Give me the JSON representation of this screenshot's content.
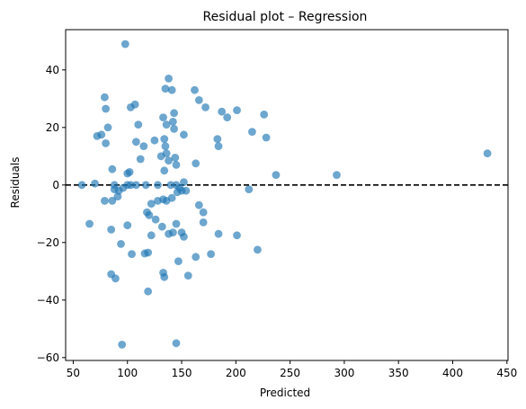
{
  "chart_data": {
    "type": "scatter",
    "title": "Residual plot – Regression",
    "xlabel": "Predicted",
    "ylabel": "Residuals",
    "xlim": [
      43,
      451
    ],
    "ylim": [
      -61,
      54
    ],
    "xticks": [
      50,
      100,
      150,
      200,
      250,
      300,
      350,
      400,
      450
    ],
    "yticks": [
      -60,
      -40,
      -20,
      0,
      20,
      40
    ],
    "grid": false,
    "reference_line": {
      "y": 0,
      "style": "dashed",
      "color": "#000000"
    },
    "point_color": "#1f77b4",
    "point_opacity": 0.65,
    "points": [
      [
        98,
        49
      ],
      [
        79,
        30.5
      ],
      [
        80,
        26.5
      ],
      [
        82,
        20
      ],
      [
        72,
        17
      ],
      [
        76,
        17.5
      ],
      [
        80,
        14.5
      ],
      [
        103,
        27
      ],
      [
        107,
        28
      ],
      [
        110,
        21
      ],
      [
        108,
        15
      ],
      [
        115,
        13.5
      ],
      [
        112,
        9
      ],
      [
        100,
        4
      ],
      [
        102,
        4.5
      ],
      [
        86,
        5.5
      ],
      [
        117,
        0
      ],
      [
        103,
        0
      ],
      [
        108,
        0
      ],
      [
        100,
        0
      ],
      [
        96,
        -1
      ],
      [
        92,
        -2
      ],
      [
        135,
        33.5
      ],
      [
        138,
        37
      ],
      [
        141,
        33
      ],
      [
        133,
        23.5
      ],
      [
        136,
        21
      ],
      [
        143,
        25
      ],
      [
        142,
        22
      ],
      [
        143,
        19.5
      ],
      [
        134,
        16
      ],
      [
        135,
        13.5
      ],
      [
        136,
        11
      ],
      [
        144,
        9.5
      ],
      [
        138,
        8.5
      ],
      [
        145,
        7
      ],
      [
        134,
        5
      ],
      [
        131,
        10
      ],
      [
        125,
        15.5
      ],
      [
        140,
        0
      ],
      [
        145,
        0
      ],
      [
        128,
        0
      ],
      [
        150,
        -2
      ],
      [
        152,
        1
      ],
      [
        148,
        -1
      ],
      [
        154,
        -2
      ],
      [
        146,
        -2.5
      ],
      [
        133,
        -5
      ],
      [
        128,
        -5.5
      ],
      [
        122,
        -6.5
      ],
      [
        136,
        -5.5
      ],
      [
        141,
        -4.5
      ],
      [
        162,
        33
      ],
      [
        166,
        29.5
      ],
      [
        172,
        27
      ],
      [
        187,
        25.5
      ],
      [
        192,
        23.5
      ],
      [
        201,
        26
      ],
      [
        215,
        18.5
      ],
      [
        226,
        24.5
      ],
      [
        228,
        16.5
      ],
      [
        183,
        16
      ],
      [
        184,
        13.5
      ],
      [
        163,
        7.5
      ],
      [
        152,
        17.5
      ],
      [
        212,
        -1.5
      ],
      [
        237,
        3.5
      ],
      [
        293,
        3.5
      ],
      [
        432,
        11
      ],
      [
        58,
        0
      ],
      [
        70,
        0.5
      ],
      [
        88,
        0
      ],
      [
        88,
        -1.5
      ],
      [
        91,
        -4
      ],
      [
        65,
        -13.5
      ],
      [
        79,
        -5.5
      ],
      [
        86,
        -5.5
      ],
      [
        85,
        -15.5
      ],
      [
        94,
        -20.5
      ],
      [
        100,
        -14
      ],
      [
        118,
        -9.5
      ],
      [
        120,
        -10.5
      ],
      [
        119,
        -23.5
      ],
      [
        116,
        -23.8
      ],
      [
        104,
        -24
      ],
      [
        126,
        -12
      ],
      [
        132,
        -14.5
      ],
      [
        142,
        -16.5
      ],
      [
        138,
        -17
      ],
      [
        145,
        -13.5
      ],
      [
        150,
        -16.5
      ],
      [
        152,
        -18
      ],
      [
        166,
        -7
      ],
      [
        170,
        -9.5
      ],
      [
        170,
        -13
      ],
      [
        184,
        -17
      ],
      [
        201,
        -17.5
      ],
      [
        220,
        -22.5
      ],
      [
        122,
        -17.5
      ],
      [
        177,
        -24
      ],
      [
        163,
        -25
      ],
      [
        147,
        -26.5
      ],
      [
        156,
        -31.5
      ],
      [
        133,
        -30.5
      ],
      [
        134,
        -32
      ],
      [
        85,
        -31
      ],
      [
        89,
        -32.5
      ],
      [
        119,
        -37
      ],
      [
        95,
        -55.5
      ],
      [
        145,
        -55
      ]
    ]
  }
}
